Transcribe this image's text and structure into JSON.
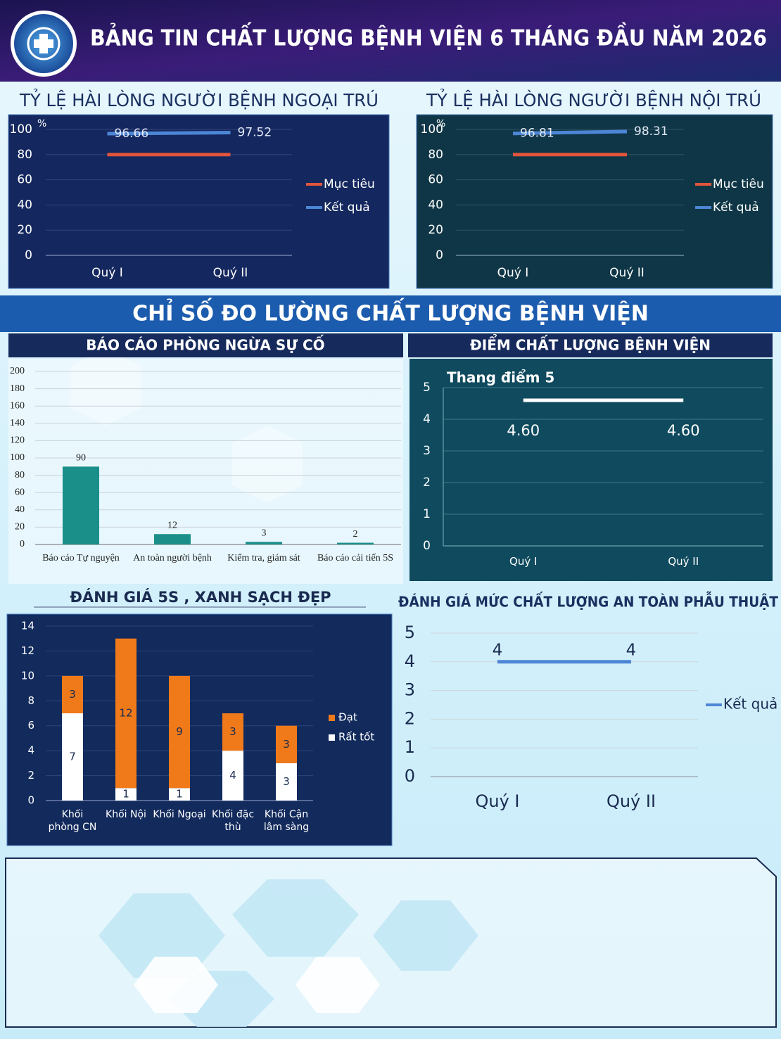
{
  "header": {
    "title": "BẢNG TIN CHẤT LƯỢNG BỆNH VIỆN 6 THÁNG ĐẦU NĂM 2026"
  },
  "section_title": "CHỈ SỐ ĐO LƯỜNG CHẤT LƯỢNG BỆNH VIỆN",
  "chart_data": [
    {
      "type": "line",
      "title": "TỶ LỆ HÀI LÒNG NGƯỜI BỆNH NGOẠI TRÚ",
      "y_unit": "%",
      "categories": [
        "Quý I",
        "Quý II"
      ],
      "series": [
        {
          "name": "Mục tiêu",
          "color": "#e0553c",
          "values": [
            80,
            80
          ]
        },
        {
          "name": "Kết quả",
          "color": "#4d86d6",
          "values": [
            96.66,
            97.52
          ]
        }
      ],
      "ylim": [
        0,
        100
      ],
      "yticks": [
        0,
        20,
        40,
        60,
        80,
        100
      ],
      "grid": true,
      "legend": "right"
    },
    {
      "type": "line",
      "title": "TỶ LỆ HÀI LÒNG NGƯỜI BỆNH NỘI TRÚ",
      "y_unit": "%",
      "categories": [
        "Quý I",
        "Quý II"
      ],
      "series": [
        {
          "name": "Mục tiêu",
          "color": "#e0553c",
          "values": [
            80,
            80
          ]
        },
        {
          "name": "Kết quả",
          "color": "#4d86d6",
          "values": [
            96.81,
            98.31
          ]
        }
      ],
      "ylim": [
        0,
        100
      ],
      "yticks": [
        0,
        20,
        40,
        60,
        80,
        100
      ],
      "grid": true,
      "legend": "right"
    },
    {
      "type": "bar",
      "title": "BÁO CÁO PHÒNG NGỪA SỰ CỐ",
      "categories": [
        "Báo cáo Tự nguyện",
        "An toàn người bệnh",
        "Kiểm tra, giám sát",
        "Báo cáo cải tiến 5S"
      ],
      "values": [
        90,
        12,
        3,
        2
      ],
      "color": "#1a8f8a",
      "ylim": [
        0,
        200
      ],
      "yticks": [
        0,
        20,
        40,
        60,
        80,
        100,
        120,
        140,
        160,
        180,
        200
      ],
      "grid": true
    },
    {
      "type": "line",
      "title": "ĐIỂM CHẤT LƯỢNG BỆNH VIỆN",
      "subtitle": "Thang điểm 5",
      "categories": [
        "Quý I",
        "Quý II"
      ],
      "values": [
        4.6,
        4.6
      ],
      "value_labels": [
        "4.60",
        "4.60"
      ],
      "color": "#ffffff",
      "ylim": [
        0,
        5
      ],
      "yticks": [
        0,
        1,
        2,
        3,
        4,
        5
      ],
      "grid": true
    },
    {
      "type": "stacked_bar",
      "title": "ĐÁNH GIÁ 5S , XANH SẠCH ĐẸP",
      "categories": [
        "Khối phòng CN",
        "Khối Nội",
        "Khối Ngoại",
        "Khối đặc thù",
        "Khối Cận lâm sàng"
      ],
      "series": [
        {
          "name": "Rất tốt",
          "color": "#ffffff",
          "values": [
            7,
            1,
            1,
            4,
            3
          ]
        },
        {
          "name": "Đạt",
          "color": "#f07a1a",
          "values": [
            3,
            12,
            9,
            3,
            3
          ]
        }
      ],
      "ylim": [
        0,
        14
      ],
      "yticks": [
        0,
        2,
        4,
        6,
        8,
        10,
        12,
        14
      ],
      "grid": true,
      "legend": "right"
    },
    {
      "type": "line",
      "title": "ĐÁNH GIÁ MỨC CHẤT LƯỢNG AN TOÀN PHẪU THUẬT",
      "categories": [
        "Quý I",
        "Quý II"
      ],
      "series": [
        {
          "name": "Kết quả",
          "color": "#4d86d6",
          "values": [
            4,
            4
          ]
        }
      ],
      "ylim": [
        0,
        5
      ],
      "yticks": [
        0,
        1,
        2,
        3,
        4,
        5
      ],
      "grid": true,
      "legend": "right"
    }
  ]
}
